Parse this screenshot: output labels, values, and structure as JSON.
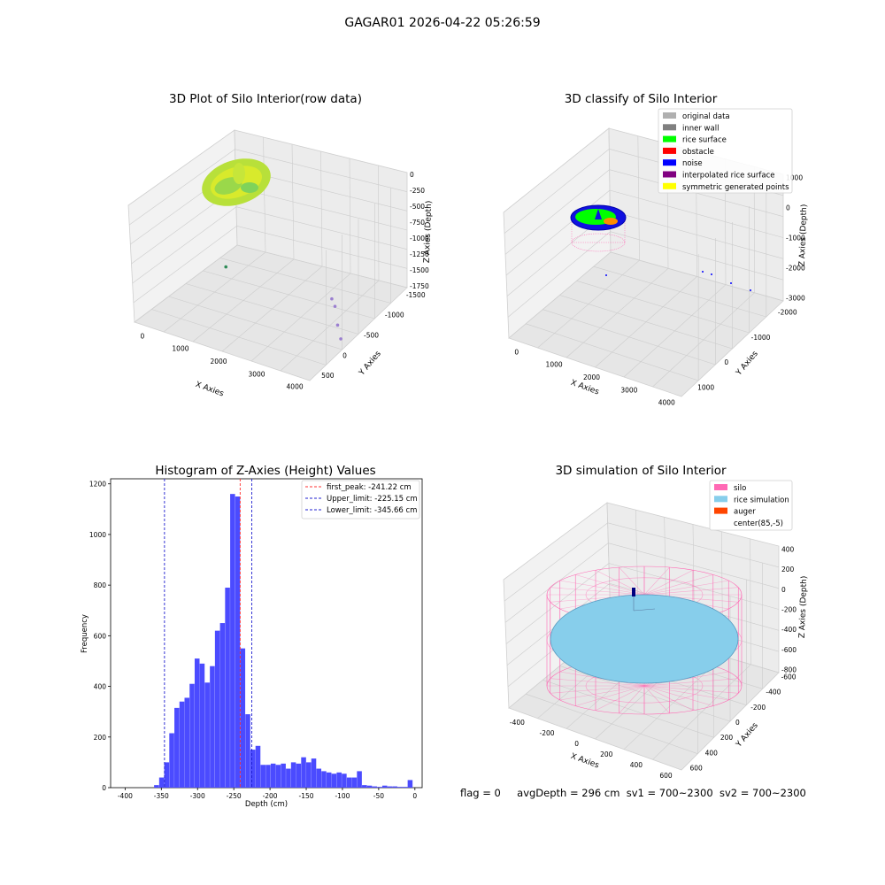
{
  "figure_title": "GAGAR01 2026-04-22 05:26:59",
  "status": {
    "flag": "flag = 0",
    "avg_depth": "avgDepth = 296 cm",
    "sv1": "sv1 = 700~2300",
    "sv2": "sv2 = 700~2300"
  },
  "colors": {
    "histogram_bar": "#4b4bff",
    "peak_line": "#ff3030",
    "limit_line": "#2020d0",
    "silo": "#ff69b4",
    "rice_simulation": "#87ceeb",
    "auger": "#ff4500",
    "rice_surface": "#00ff00",
    "noise": "#0000ff",
    "inner_wall": "#808080"
  },
  "chart_data": [
    {
      "type": "scatter",
      "title": "3D Plot of Silo Interior(row data)",
      "xlabel": "X Axies",
      "ylabel": "Y Axies",
      "zlabel": "Z Axies (Depth)",
      "x_ticks": [
        "0",
        "1000",
        "2000",
        "3000",
        "4000"
      ],
      "y_ticks": [
        "-1500",
        "-1000",
        "-500",
        "0",
        "500"
      ],
      "z_ticks": [
        "-1750",
        "-1500",
        "-1250",
        "-1000",
        "-750",
        "-500",
        "-250",
        "0"
      ],
      "xlim": [
        -500,
        4200
      ],
      "ylim": [
        -1700,
        700
      ],
      "zlim": [
        -1900,
        100
      ],
      "outliers": [
        {
          "x": 0,
          "y": 0,
          "z": -1780
        },
        {
          "x": 3300,
          "y": -400,
          "z": -1400
        },
        {
          "x": 3500,
          "y": -500,
          "z": -1430
        },
        {
          "x": 3800,
          "y": -700,
          "z": -1580
        },
        {
          "x": 4000,
          "y": -800,
          "z": -1720
        }
      ]
    },
    {
      "type": "scatter",
      "title": "3D classify of Silo Interior",
      "xlabel": "X Axies",
      "ylabel": "Y Axies",
      "zlabel": "Z Axies (Depth)",
      "x_ticks": [
        "0",
        "1000",
        "2000",
        "3000",
        "4000"
      ],
      "y_ticks": [
        "-2000",
        "-1000",
        "0",
        "1000"
      ],
      "z_ticks": [
        "-3000",
        "-2000",
        "-1000",
        "0",
        "1000"
      ],
      "legend": {
        "position": "upper right",
        "entries": [
          {
            "label": "original data",
            "color": "#b0b0b0"
          },
          {
            "label": "inner wall",
            "color": "#808080"
          },
          {
            "label": "rice surface",
            "color": "#00ff00"
          },
          {
            "label": "obstacle",
            "color": "#ff0000"
          },
          {
            "label": "noise",
            "color": "#0000ff"
          },
          {
            "label": "interpolated rice surface",
            "color": "#800080"
          },
          {
            "label": "symmetric generated points",
            "color": "#ffff00"
          }
        ]
      }
    },
    {
      "type": "bar",
      "title": "Histogram of Z-Axies (Height) Values",
      "xlabel": "Depth (cm)",
      "ylabel": "Frequency",
      "xlim": [
        -420,
        10
      ],
      "ylim": [
        0,
        1220
      ],
      "x_ticks": [
        -400,
        -350,
        -300,
        -250,
        -200,
        -150,
        -100,
        -50,
        0
      ],
      "y_ticks": [
        0,
        200,
        400,
        600,
        800,
        1000,
        1200
      ],
      "bin_width": 7,
      "bins_start": [
        -360,
        -353,
        -346,
        -339,
        -332,
        -325,
        -318,
        -311,
        -304,
        -297,
        -290,
        -283,
        -276,
        -269,
        -262,
        -255,
        -248,
        -241,
        -234,
        -227,
        -220,
        -213,
        -206,
        -199,
        -192,
        -185,
        -178,
        -171,
        -164,
        -157,
        -150,
        -143,
        -136,
        -129,
        -122,
        -115,
        -108,
        -101,
        -94,
        -87,
        -80,
        -73,
        -66,
        -59,
        -52,
        -45,
        -38,
        -31,
        -24,
        -17,
        -10,
        -3
      ],
      "values": [
        10,
        40,
        100,
        215,
        315,
        340,
        355,
        410,
        510,
        490,
        415,
        480,
        620,
        650,
        790,
        1160,
        1150,
        550,
        290,
        150,
        165,
        90,
        90,
        95,
        90,
        95,
        75,
        100,
        95,
        120,
        100,
        115,
        75,
        65,
        60,
        55,
        60,
        55,
        40,
        40,
        65,
        10,
        8,
        5,
        3,
        8,
        5,
        5,
        3,
        3,
        30,
        0
      ],
      "vlines": [
        {
          "label": "first_peak: -241.22 cm",
          "x": -241.22,
          "color": "#ff3030"
        },
        {
          "label": "Upper_limit: -225.15 cm",
          "x": -225.15,
          "color": "#2020d0"
        },
        {
          "label": "Lower_limit: -345.66 cm",
          "x": -345.66,
          "color": "#2020d0"
        }
      ],
      "legend_position": "upper right"
    },
    {
      "type": "scatter",
      "title": "3D simulation of Silo Interior",
      "xlabel": "X Axies",
      "ylabel": "Y Axies",
      "zlabel": "Z Axies (Depth)",
      "x_ticks": [
        "-400",
        "-200",
        "0",
        "200",
        "400",
        "600"
      ],
      "y_ticks": [
        "-600",
        "-400",
        "-200",
        "0",
        "200",
        "400",
        "600"
      ],
      "z_ticks": [
        "-800",
        "-600",
        "-400",
        "-200",
        "0",
        "200",
        "400"
      ],
      "legend": {
        "position": "upper right",
        "entries": [
          {
            "label": "silo",
            "color": "#ff69b4"
          },
          {
            "label": "rice simulation",
            "color": "#87ceeb"
          },
          {
            "label": "auger",
            "color": "#ff4500"
          },
          {
            "label": "center(85,-5)",
            "color": ""
          }
        ]
      }
    }
  ]
}
